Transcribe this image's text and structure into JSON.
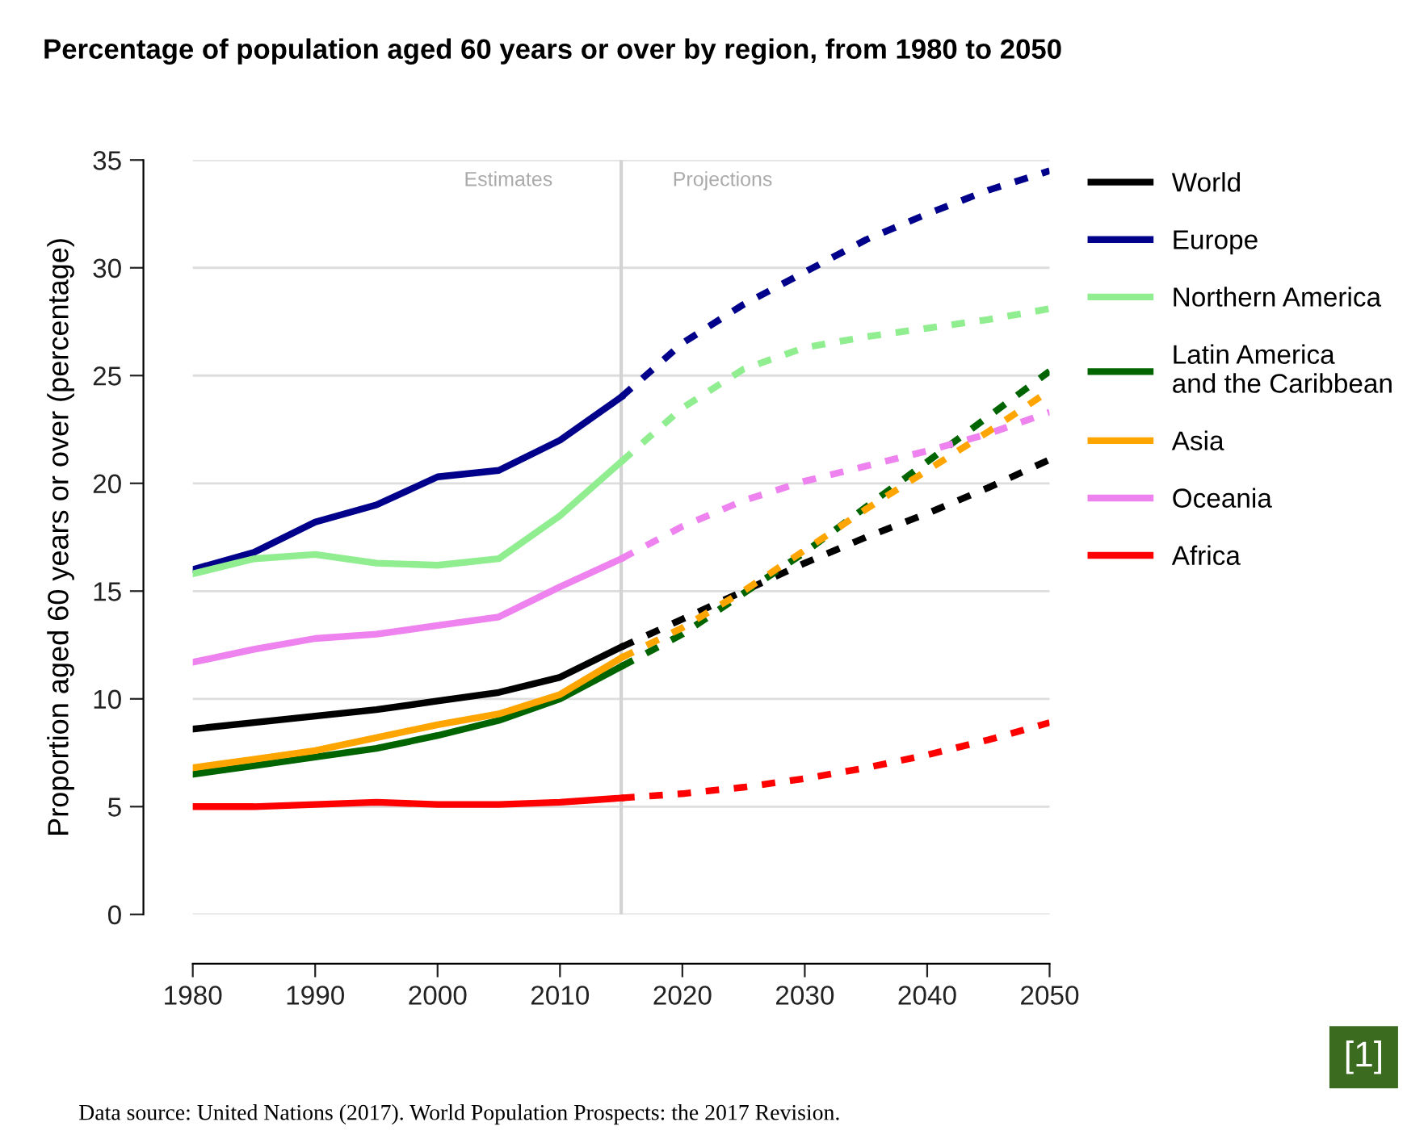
{
  "chart_data": {
    "type": "line",
    "title": "Percentage of population aged 60 years or over by region, from 1980 to 2050",
    "ylabel": "Proportion aged 60 years or over (percentage)",
    "xlim": [
      1980,
      2050
    ],
    "xticks": [
      1980,
      1990,
      2000,
      2010,
      2020,
      2030,
      2040,
      2050
    ],
    "ylim": [
      0,
      35
    ],
    "yticks": [
      0,
      5,
      10,
      15,
      20,
      25,
      30,
      35
    ],
    "grid": "y",
    "legend": "right",
    "marker": "none",
    "ref_lines": [
      {
        "axis": "x",
        "value": 2015,
        "color": "#d3d3d3"
      }
    ],
    "annotations": [
      "Estimates",
      "Projections",
      "Data source: United Nations (2017). World Population Prospects: the 2017 Revision.",
      "[1]"
    ],
    "series": [
      {
        "name": "World",
        "color": "#000000",
        "line_style": "solid",
        "x": [
          1980,
          1985,
          1990,
          1995,
          2000,
          2005,
          2010,
          2015
        ],
        "values": [
          8.6,
          8.9,
          9.2,
          9.5,
          9.9,
          10.3,
          11,
          12.4
        ]
      },
      {
        "name": "Europe",
        "color": "#00008b",
        "line_style": "solid",
        "x": [
          1980,
          1985,
          1990,
          1995,
          2000,
          2005,
          2010,
          2015
        ],
        "values": [
          16,
          16.8,
          18.2,
          19,
          20.3,
          20.6,
          22,
          24
        ]
      },
      {
        "name": "Northern America",
        "color": "#90ee90",
        "line_style": "solid",
        "x": [
          1980,
          1985,
          1990,
          1995,
          2000,
          2005,
          2010,
          2015
        ],
        "values": [
          15.8,
          16.5,
          16.7,
          16.3,
          16.2,
          16.5,
          18.5,
          21
        ]
      },
      {
        "name": "Latin America\nand the Caribbean",
        "color": "#006400",
        "line_style": "solid",
        "x": [
          1980,
          1985,
          1990,
          1995,
          2000,
          2005,
          2010,
          2015
        ],
        "values": [
          6.5,
          6.9,
          7.3,
          7.7,
          8.3,
          9,
          10,
          11.5
        ]
      },
      {
        "name": "Asia",
        "color": "#ffa500",
        "line_style": "solid",
        "x": [
          1980,
          1985,
          1990,
          1995,
          2000,
          2005,
          2010,
          2015
        ],
        "values": [
          6.8,
          7.2,
          7.6,
          8.2,
          8.8,
          9.3,
          10.2,
          11.9
        ]
      },
      {
        "name": "Oceania",
        "color": "#ee82ee",
        "line_style": "solid",
        "x": [
          1980,
          1985,
          1990,
          1995,
          2000,
          2005,
          2010,
          2015
        ],
        "values": [
          11.7,
          12.3,
          12.8,
          13,
          13.4,
          13.8,
          15.2,
          16.5
        ]
      },
      {
        "name": "Africa",
        "color": "#ff0000",
        "line_style": "solid",
        "x": [
          1980,
          1985,
          1990,
          1995,
          2000,
          2005,
          2010,
          2015
        ],
        "values": [
          5,
          5,
          5.1,
          5.2,
          5.1,
          5.1,
          5.2,
          5.4
        ]
      },
      {
        "color": "#000000",
        "line_style": "dotted",
        "x": [
          2015,
          2020,
          2025,
          2030,
          2035,
          2040,
          2045,
          2050
        ],
        "values": [
          12.4,
          13.7,
          15,
          16.3,
          17.5,
          18.6,
          19.8,
          21.1
        ]
      },
      {
        "color": "#00008b",
        "line_style": "dotted",
        "x": [
          2015,
          2020,
          2025,
          2030,
          2035,
          2040,
          2045,
          2050
        ],
        "values": [
          24,
          26.5,
          28.3,
          29.8,
          31.3,
          32.5,
          33.6,
          34.5
        ]
      },
      {
        "color": "#90ee90",
        "line_style": "dotted",
        "x": [
          2015,
          2020,
          2025,
          2030,
          2035,
          2040,
          2045,
          2050
        ],
        "values": [
          21,
          23.5,
          25.3,
          26.3,
          26.8,
          27.2,
          27.6,
          28.1
        ]
      },
      {
        "color": "#006400",
        "line_style": "dotted",
        "x": [
          2015,
          2020,
          2025,
          2030,
          2035,
          2040,
          2045,
          2050
        ],
        "values": [
          11.5,
          13,
          14.9,
          16.8,
          18.9,
          21,
          23.1,
          25.2
        ]
      },
      {
        "color": "#ffa500",
        "line_style": "dotted",
        "x": [
          2015,
          2020,
          2025,
          2030,
          2035,
          2040,
          2045,
          2050
        ],
        "values": [
          11.9,
          13.3,
          15,
          16.9,
          18.8,
          20.6,
          22.4,
          24.3
        ]
      },
      {
        "color": "#ee82ee",
        "line_style": "dotted",
        "x": [
          2015,
          2020,
          2025,
          2030,
          2035,
          2040,
          2045,
          2050
        ],
        "values": [
          16.5,
          18,
          19.2,
          20.1,
          20.8,
          21.5,
          22.3,
          23.3
        ]
      },
      {
        "color": "#ff0000",
        "line_style": "dotted",
        "x": [
          2015,
          2020,
          2025,
          2030,
          2035,
          2040,
          2045,
          2050
        ],
        "values": [
          5.4,
          5.6,
          5.9,
          6.3,
          6.8,
          7.4,
          8.1,
          8.9
        ]
      }
    ]
  }
}
